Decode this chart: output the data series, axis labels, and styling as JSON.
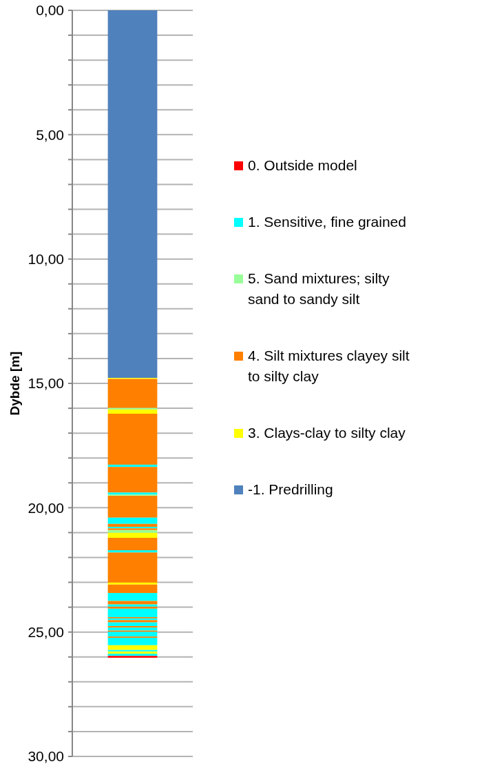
{
  "chart_data": {
    "type": "bar",
    "stacked": true,
    "categories": [
      null
    ],
    "ylabel": "Dybde [m]",
    "ylim": [
      30,
      0
    ],
    "yticks": [
      {
        "value": 0,
        "label": "0,00"
      },
      {
        "value": 1,
        "label": null
      },
      {
        "value": 2,
        "label": null
      },
      {
        "value": 3,
        "label": null
      },
      {
        "value": 4,
        "label": null
      },
      {
        "value": 5,
        "label": "5,00"
      },
      {
        "value": 6,
        "label": null
      },
      {
        "value": 7,
        "label": null
      },
      {
        "value": 8,
        "label": null
      },
      {
        "value": 9,
        "label": null
      },
      {
        "value": 10,
        "label": "10,00"
      },
      {
        "value": 11,
        "label": null
      },
      {
        "value": 12,
        "label": null
      },
      {
        "value": 13,
        "label": null
      },
      {
        "value": 14,
        "label": null
      },
      {
        "value": 15,
        "label": "15,00"
      },
      {
        "value": 16,
        "label": null
      },
      {
        "value": 17,
        "label": null
      },
      {
        "value": 18,
        "label": null
      },
      {
        "value": 19,
        "label": null
      },
      {
        "value": 20,
        "label": "20,00"
      },
      {
        "value": 21,
        "label": null
      },
      {
        "value": 22,
        "label": null
      },
      {
        "value": 23,
        "label": null
      },
      {
        "value": 24,
        "label": null
      },
      {
        "value": 25,
        "label": "25,00"
      },
      {
        "value": 26,
        "label": null
      },
      {
        "value": 27,
        "label": null
      },
      {
        "value": 28,
        "label": null
      },
      {
        "value": 29,
        "label": null
      },
      {
        "value": 30,
        "label": "30,00"
      }
    ],
    "grid": "y",
    "legend": "right",
    "series": [
      {
        "name": "-1. Predrilling",
        "color": "#4f81bd",
        "values": [
          14.78
        ]
      },
      {
        "name": "3. Clays-clay to silty clay",
        "color": "#ffff00",
        "values": [
          0.04
        ]
      },
      {
        "name": "4. Silt mixtures clayey silt to silty clay",
        "color": "#ff8000",
        "values": [
          1.17
        ]
      },
      {
        "name": "5. Sand mixtures; silty sand to sandy silt",
        "color": "#99ff99",
        "values": [
          0.06
        ]
      },
      {
        "color": "#ffff00",
        "values": [
          0.17
        ]
      },
      {
        "color": "#ff8000",
        "values": [
          2.05
        ]
      },
      {
        "name": "1. Sensitive, fine grained",
        "color": "#00ffff",
        "values": [
          0.09
        ]
      },
      {
        "color": "#ff8000",
        "values": [
          1.03
        ]
      },
      {
        "color": "#00ffff",
        "values": [
          0.08
        ]
      },
      {
        "color": "#99ff99",
        "values": [
          0.05
        ]
      },
      {
        "color": "#ff8000",
        "values": [
          0.88
        ]
      },
      {
        "color": "#00ffff",
        "values": [
          0.25
        ]
      },
      {
        "color": "#ff8000",
        "values": [
          0.12
        ]
      },
      {
        "color": "#00ffff",
        "values": [
          0.06
        ]
      },
      {
        "color": "#ff8000",
        "values": [
          0.07
        ]
      },
      {
        "color": "#99ff99",
        "values": [
          0.11
        ]
      },
      {
        "color": "#ffff00",
        "values": [
          0.2
        ]
      },
      {
        "color": "#ff8000",
        "values": [
          0.5
        ]
      },
      {
        "color": "#00ffff",
        "values": [
          0.09
        ]
      },
      {
        "color": "#ff8000",
        "values": [
          1.21
        ]
      },
      {
        "color": "#ffff00",
        "values": [
          0.08
        ]
      },
      {
        "color": "#ff8000",
        "values": [
          0.34
        ]
      },
      {
        "color": "#00ffff",
        "values": [
          0.32
        ]
      },
      {
        "color": "#ff8000",
        "values": [
          0.14
        ]
      },
      {
        "color": "#00ffff",
        "values": [
          0.09
        ]
      },
      {
        "color": "#ff8000",
        "values": [
          0.08
        ]
      },
      {
        "color": "#00ffff",
        "values": [
          0.34
        ]
      },
      {
        "color": "#ff8000",
        "values": [
          0.05
        ]
      },
      {
        "color": "#00ffff",
        "values": [
          0.07
        ]
      },
      {
        "color": "#ff8000",
        "values": [
          0.09
        ]
      },
      {
        "color": "#00ffff",
        "values": [
          0.15
        ]
      },
      {
        "color": "#ff8000",
        "values": [
          0.06
        ]
      },
      {
        "color": "#00ffff",
        "values": [
          0.12
        ]
      },
      {
        "color": "#ff8000",
        "values": [
          0.05
        ]
      },
      {
        "color": "#00ffff",
        "values": [
          0.19
        ]
      },
      {
        "color": "#ff8000",
        "values": [
          0.05
        ]
      },
      {
        "color": "#00ffff",
        "values": [
          0.3
        ]
      },
      {
        "color": "#ffff00",
        "values": [
          0.19
        ]
      },
      {
        "color": "#00ffff",
        "values": [
          0.06
        ]
      },
      {
        "color": "#ffff00",
        "values": [
          0.09
        ]
      },
      {
        "color": "#00ffff",
        "values": [
          0.09
        ]
      },
      {
        "name": "0. Outside model",
        "color": "#ff0000",
        "values": [
          0.07
        ]
      }
    ]
  }
}
